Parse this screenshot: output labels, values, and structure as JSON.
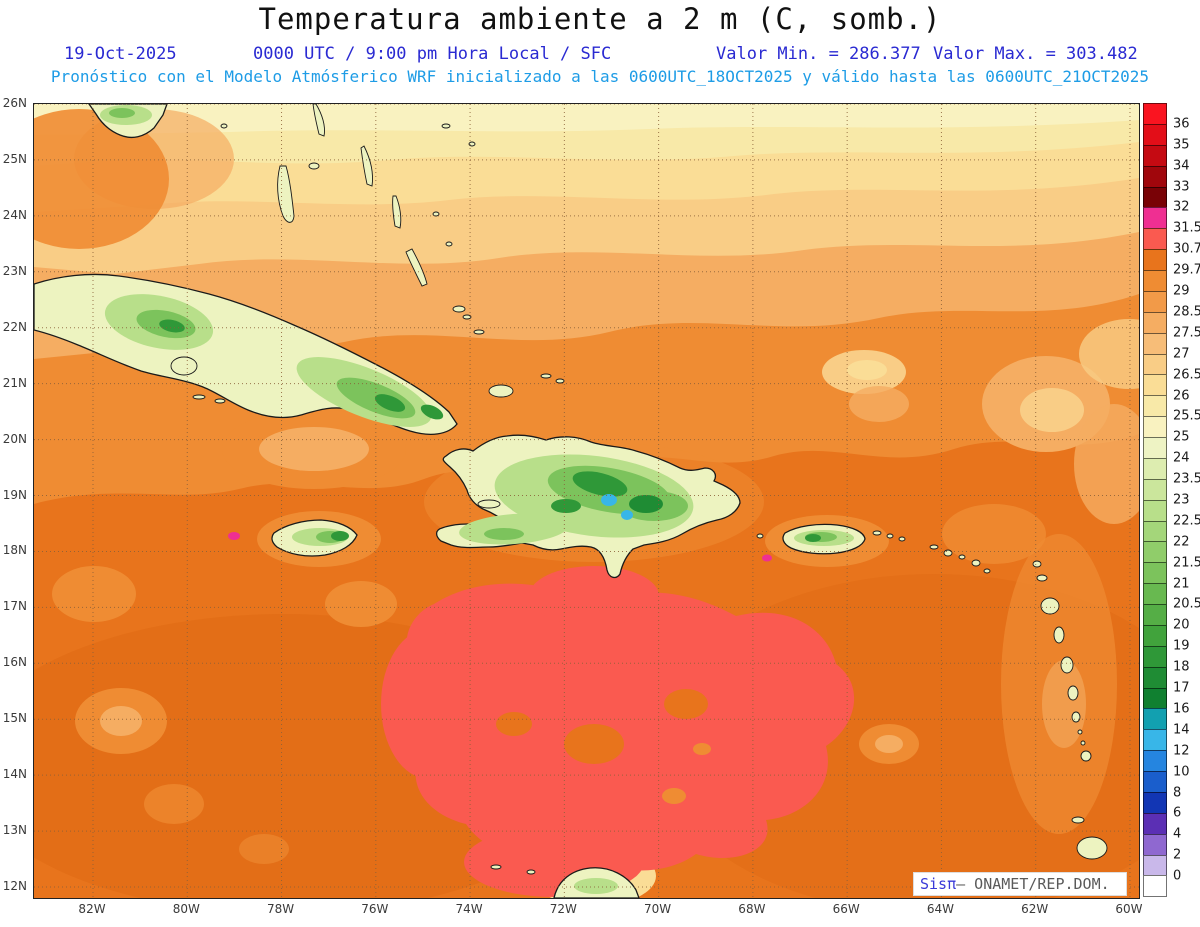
{
  "header": {
    "title": "Temperatura ambiente a 2 m (C, somb.)",
    "date": "19-Oct-2025",
    "time": "0000 UTC / 9:00 pm Hora Local / SFC",
    "min_label": "Valor Min. = 286.377",
    "max_label": "Valor Max. = 303.482",
    "forecast_line": "Pronóstico con el Modelo Atmósferico WRF inicializado a las 0600UTC_18OCT2025 y válido hasta las  0600UTC_21OCT2025"
  },
  "watermark": {
    "brand": "Sisπ",
    "source": "– ONAMET/REP.DOM."
  },
  "colors": {
    "title": "#111111",
    "header_blue": "#2a2ad2",
    "header_cyan": "#1e9ce6",
    "axis": "#3a3a3a",
    "grid": "#8a6038",
    "frame": "#222222",
    "watermark_brand": "#3a3ad8",
    "watermark_text": "#5a5a5a"
  },
  "chart_data": {
    "type": "heatmap",
    "title": "Temperatura ambiente a 2 m (C, somb.)",
    "date": "19-Oct-2025",
    "valid_time": "0000 UTC / 9:00 pm Hora Local / SFC",
    "value_min": 286.377,
    "value_max": 303.482,
    "model_info": "Pronóstico con el Modelo Atmósferico WRF inicializado a las 0600UTC_18OCT2025 y válido hasta las 0600UTC_21OCT2025",
    "x_ticks": [
      "82W",
      "80W",
      "78W",
      "76W",
      "74W",
      "72W",
      "70W",
      "68W",
      "66W",
      "64W",
      "62W",
      "60W"
    ],
    "y_ticks": [
      "26N",
      "25N",
      "24N",
      "23N",
      "22N",
      "21N",
      "20N",
      "19N",
      "18N",
      "17N",
      "16N",
      "15N",
      "14N",
      "13N",
      "12N"
    ],
    "colorbar": {
      "boundary_labels": [
        "36",
        "35",
        "34",
        "33",
        "32",
        "31.5",
        "30.7",
        "29.7",
        "29",
        "28.5",
        "27.5",
        "27",
        "26.5",
        "26",
        "25.5",
        "25",
        "24",
        "23.5",
        "23",
        "22.5",
        "22",
        "21.5",
        "21",
        "20.5",
        "20",
        "19",
        "18",
        "17",
        "16",
        "14",
        "12",
        "10",
        "8",
        "6",
        "4",
        "2",
        "0"
      ],
      "cell_colors": [
        "#fa1420",
        "#e30e18",
        "#c50a12",
        "#a0060c",
        "#790206",
        "#ef2f92",
        "#fa5a50",
        "#e8741c",
        "#ef8c33",
        "#f29a48",
        "#f5ad62",
        "#f7bd78",
        "#f9cd86",
        "#fadd96",
        "#f8e9a8",
        "#f9f2c0",
        "#eef3c4",
        "#ddedb0",
        "#cbe69c",
        "#b8df8a",
        "#a4d67a",
        "#90cd6a",
        "#7cc35c",
        "#68b950",
        "#55ae46",
        "#41a33c",
        "#2f9838",
        "#1f8c34",
        "#108030",
        "#12a0b0",
        "#38b6e8",
        "#2585e0",
        "#1a5ecc",
        "#1236b4",
        "#5b2fb4",
        "#8f68d0",
        "#c9b8ea",
        "#ffffff"
      ]
    },
    "palette": {
      "base": "#e8741c",
      "base_dark": "#df6a14",
      "mid": "#ef8c33",
      "light": "#f5ad62",
      "pale": "#f9cd86",
      "yellow": "#fadd96",
      "pale_yellow": "#f8e9a8",
      "cream": "#f9f2c0",
      "hot_red": "#fa5a50",
      "magenta": "#ef2f92",
      "land": "#edf3c0",
      "green_light": "#b8df8a",
      "green": "#7cc35c",
      "green_dark": "#2f9838",
      "green_deep": "#1f8c34",
      "lake": "#38b6e8",
      "coast": "#1a1a1a"
    }
  }
}
